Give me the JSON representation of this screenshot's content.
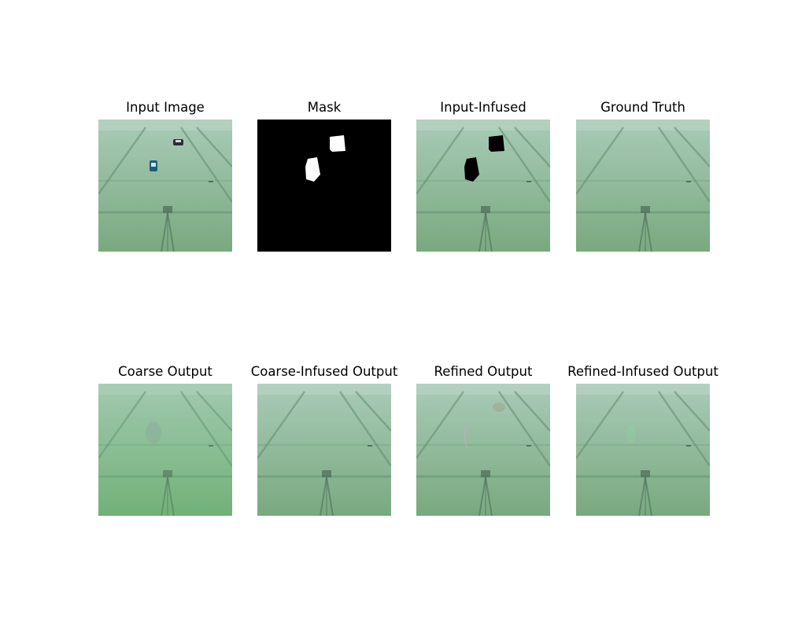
{
  "panels": [
    {
      "title": "Input Image",
      "kind": "input"
    },
    {
      "title": "Mask",
      "kind": "mask"
    },
    {
      "title": "Input-Infused",
      "kind": "infused"
    },
    {
      "title": "Ground Truth",
      "kind": "gt"
    },
    {
      "title": "Coarse Output",
      "kind": "coarse"
    },
    {
      "title": "Coarse-Infused Output",
      "kind": "coarse_infused"
    },
    {
      "title": "Refined Output",
      "kind": "refined"
    },
    {
      "title": "Refined-Infused Output",
      "kind": "refined_infused"
    }
  ],
  "colors": {
    "floor_top": "#a9cbb8",
    "floor_bottom": "#79a97f",
    "stripe": "#5f8f6e",
    "mask_bg": "#000000",
    "mask_fg": "#ffffff",
    "coarse_bottom": "#6fae74"
  }
}
